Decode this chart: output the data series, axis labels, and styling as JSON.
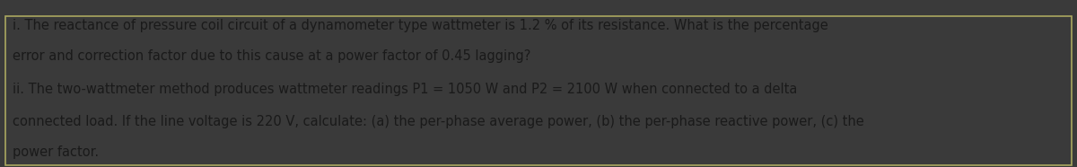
{
  "background_color": "#cccb7a",
  "outer_bg": "#3a3a3a",
  "header_bg": "#2a2a2a",
  "text_color": "#1a1a1a",
  "line1": "i. The reactance of pressure coil circuit of a dynamometer type wattmeter is 1.2 % of its resistance. What is the percentage",
  "line2": "error and correction factor due to this cause at a power factor of 0.45 lagging?",
  "line3": "ii. The two-wattmeter method produces wattmeter readings P1 = 1050 W and P2 = 2100 W when connected to a delta",
  "line4": "connected load. If the line voltage is 220 V, calculate: (a) the per-phase average power, (b) the per-phase reactive power, (c) the",
  "line5": "power factor.",
  "fontsize": 10.5,
  "figsize": [
    12.0,
    1.86
  ],
  "dpi": 100
}
